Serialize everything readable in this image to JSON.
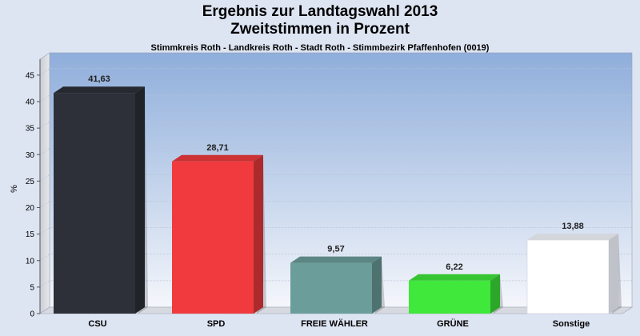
{
  "chart_data": {
    "type": "bar",
    "title": "Ergebnis zur Landtagswahl 2013",
    "title_line2": "Zweitstimmen in Prozent",
    "subtitle": "Stimmkreis Roth - Landkreis Roth - Stadt Roth - Stimmbezirk Pfaffenhofen (0019)",
    "ylabel": "%",
    "ylim": [
      0,
      48
    ],
    "yticks": [
      0,
      5,
      10,
      15,
      20,
      25,
      30,
      35,
      40,
      45
    ],
    "categories": [
      "CSU",
      "SPD",
      "FREIE WÄHLER",
      "GRÜNE",
      "Sonstige"
    ],
    "values": [
      41.63,
      28.71,
      9.57,
      6.22,
      13.88
    ],
    "value_labels": [
      "41,63",
      "28,71",
      "9,57",
      "6,22",
      "13,88"
    ],
    "colors": [
      "#2d3038",
      "#f03a3d",
      "#6b9e9a",
      "#3fe83a",
      "#ffffff"
    ],
    "grid": true,
    "legend": "none"
  }
}
